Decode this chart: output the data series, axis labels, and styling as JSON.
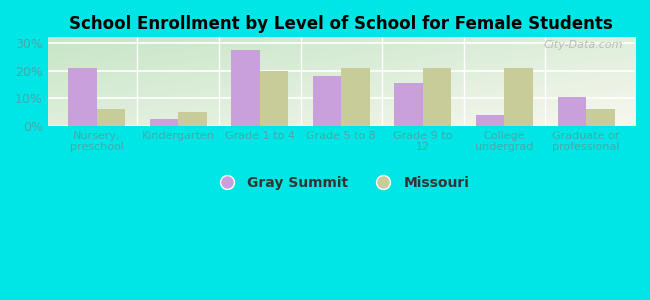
{
  "title": "School Enrollment by Level of School for Female Students",
  "categories": [
    "Nursery,\npreschool",
    "Kindergarten",
    "Grade 1 to 4",
    "Grade 5 to 8",
    "Grade 9 to\n12",
    "College\nundergrad",
    "Graduate or\nprofessional"
  ],
  "gray_summit": [
    21.0,
    2.5,
    27.5,
    18.0,
    15.5,
    4.0,
    10.5
  ],
  "missouri": [
    6.0,
    5.0,
    20.0,
    21.0,
    21.0,
    21.0,
    6.0
  ],
  "gray_summit_color": "#c9a0dc",
  "missouri_color": "#c8cc99",
  "background_color": "#00e5e5",
  "plot_bg_top_left": "#c8e6c8",
  "plot_bg_bottom_right": "#f8f8f0",
  "ylim": [
    0,
    32
  ],
  "yticks": [
    0,
    10,
    20,
    30
  ],
  "ytick_labels": [
    "0%",
    "10%",
    "20%",
    "30%"
  ],
  "bar_width": 0.35,
  "legend_labels": [
    "Gray Summit",
    "Missouri"
  ],
  "watermark": "City-Data.com",
  "tick_color": "#44aaaa",
  "label_color": "#44aaaa"
}
